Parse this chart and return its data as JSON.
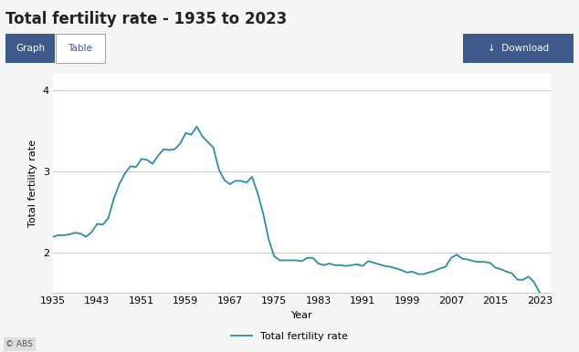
{
  "title": "Total fertility rate - 1935 to 2023",
  "xlabel": "Year",
  "ylabel": "Total fertility rate",
  "legend_label": "Total fertility rate",
  "line_color": "#2d8fa3",
  "background_color": "#f5f5f5",
  "plot_bg_color": "#ffffff",
  "grid_color": "#cccccc",
  "xlim": [
    1935,
    2025
  ],
  "ylim": [
    1.5,
    4.2
  ],
  "yticks": [
    2,
    3,
    4
  ],
  "xticks": [
    1935,
    1943,
    1951,
    1959,
    1967,
    1975,
    1983,
    1991,
    1999,
    2007,
    2015,
    2023
  ],
  "years": [
    1935,
    1936,
    1937,
    1938,
    1939,
    1940,
    1941,
    1942,
    1943,
    1944,
    1945,
    1946,
    1947,
    1948,
    1949,
    1950,
    1951,
    1952,
    1953,
    1954,
    1955,
    1956,
    1957,
    1958,
    1959,
    1960,
    1961,
    1962,
    1963,
    1964,
    1965,
    1966,
    1967,
    1968,
    1969,
    1970,
    1971,
    1972,
    1973,
    1974,
    1975,
    1976,
    1977,
    1978,
    1979,
    1980,
    1981,
    1982,
    1983,
    1984,
    1985,
    1986,
    1987,
    1988,
    1989,
    1990,
    1991,
    1992,
    1993,
    1994,
    1995,
    1996,
    1997,
    1998,
    1999,
    2000,
    2001,
    2002,
    2003,
    2004,
    2005,
    2006,
    2007,
    2008,
    2009,
    2010,
    2011,
    2012,
    2013,
    2014,
    2015,
    2016,
    2017,
    2018,
    2019,
    2020,
    2021,
    2022,
    2023
  ],
  "values": [
    2.19,
    2.21,
    2.21,
    2.22,
    2.24,
    2.23,
    2.19,
    2.25,
    2.35,
    2.34,
    2.42,
    2.66,
    2.84,
    2.97,
    3.06,
    3.05,
    3.15,
    3.14,
    3.09,
    3.19,
    3.27,
    3.26,
    3.27,
    3.34,
    3.47,
    3.45,
    3.55,
    3.43,
    3.36,
    3.29,
    3.02,
    2.89,
    2.84,
    2.88,
    2.88,
    2.86,
    2.93,
    2.73,
    2.48,
    2.16,
    1.95,
    1.9,
    1.9,
    1.9,
    1.9,
    1.89,
    1.93,
    1.93,
    1.86,
    1.84,
    1.86,
    1.84,
    1.84,
    1.83,
    1.84,
    1.85,
    1.83,
    1.89,
    1.87,
    1.85,
    1.83,
    1.82,
    1.8,
    1.78,
    1.75,
    1.76,
    1.73,
    1.73,
    1.75,
    1.77,
    1.8,
    1.82,
    1.93,
    1.97,
    1.92,
    1.91,
    1.89,
    1.88,
    1.88,
    1.87,
    1.81,
    1.79,
    1.76,
    1.74,
    1.66,
    1.66,
    1.7,
    1.63,
    1.5
  ],
  "title_fontsize": 12,
  "axis_fontsize": 8,
  "tick_fontsize": 8,
  "btn_graph_color": "#3d5a8a",
  "btn_table_color": "#ffffff",
  "btn_text_color_active": "#ffffff",
  "btn_text_color_inactive": "#3d5a8a",
  "download_btn_color": "#3d5a8a",
  "abs_text": "© ABS"
}
